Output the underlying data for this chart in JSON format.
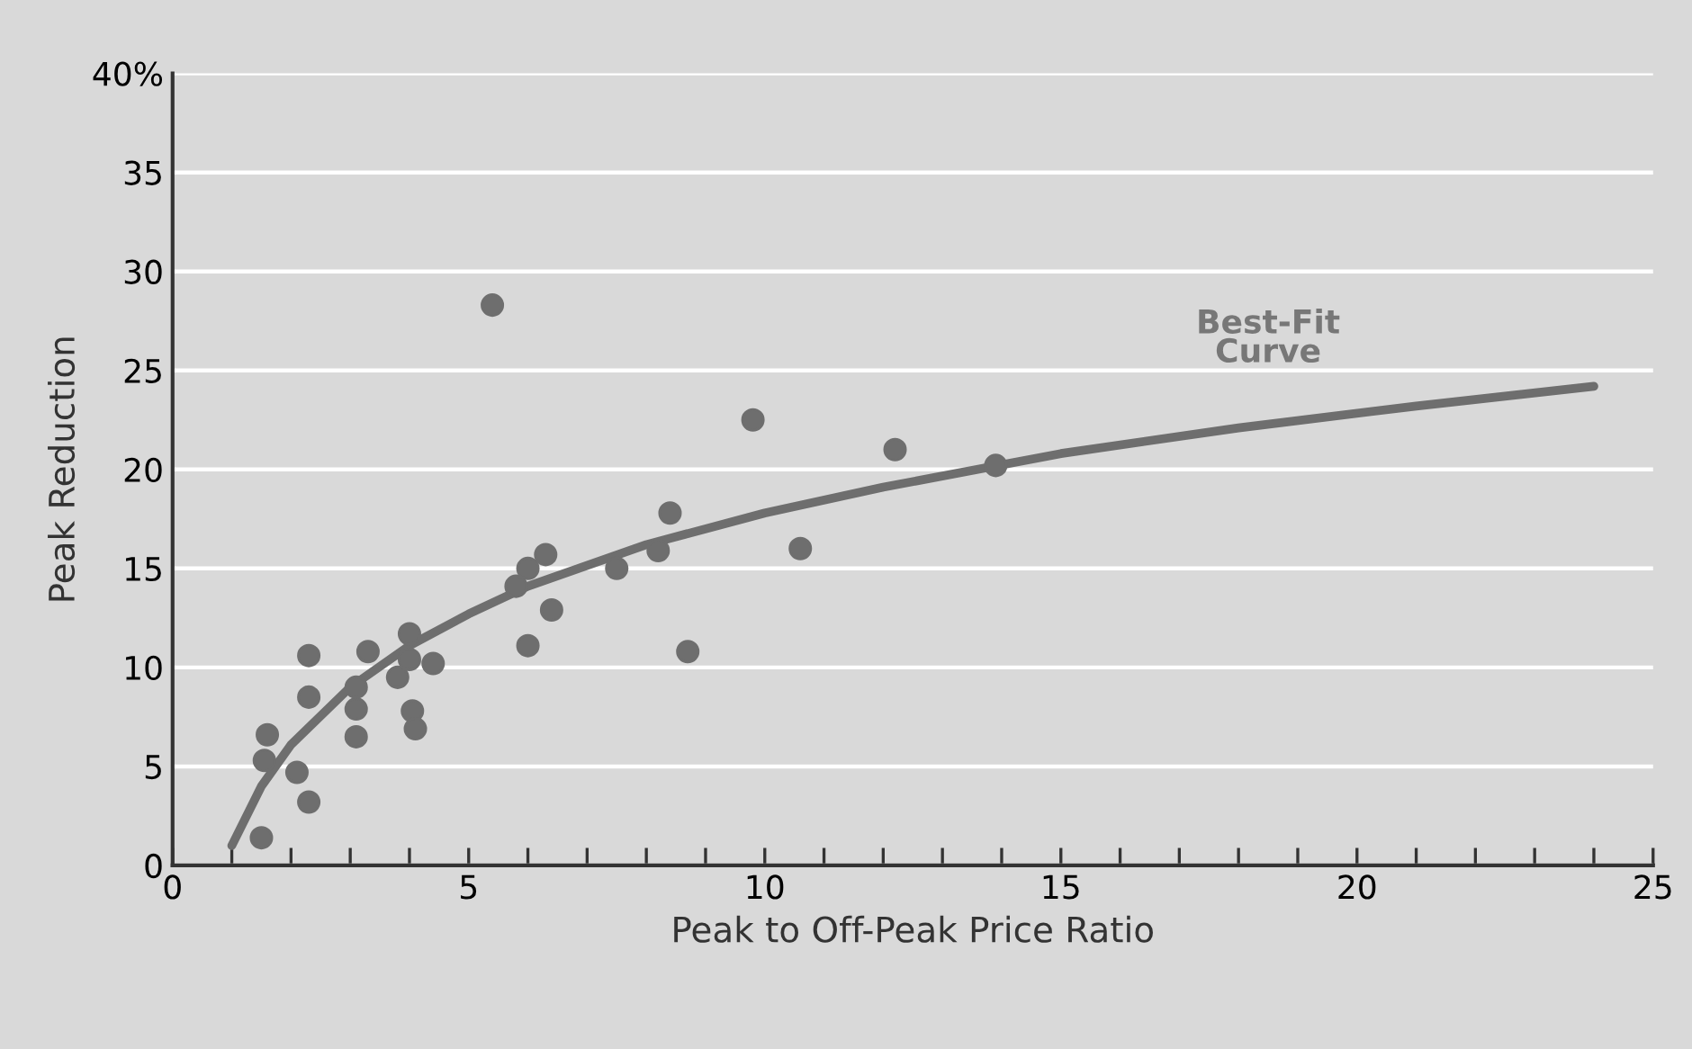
{
  "chart_data": {
    "type": "scatter",
    "xlabel": "Peak to Off-Peak Price Ratio",
    "ylabel": "Peak Reduction",
    "xlim": [
      0,
      25
    ],
    "ylim": [
      0,
      40
    ],
    "xticks": [
      0,
      {
        "value": 1,
        "label": null
      },
      {
        "value": 2,
        "label": null
      },
      {
        "value": 3,
        "label": null
      },
      {
        "value": 4,
        "label": null
      },
      5,
      {
        "value": 6,
        "label": null
      },
      {
        "value": 7,
        "label": null
      },
      {
        "value": 8,
        "label": null
      },
      {
        "value": 9,
        "label": null
      },
      10,
      {
        "value": 11,
        "label": null
      },
      {
        "value": 12,
        "label": null
      },
      {
        "value": 13,
        "label": null
      },
      {
        "value": 14,
        "label": null
      },
      15,
      {
        "value": 16,
        "label": null
      },
      {
        "value": 17,
        "label": null
      },
      {
        "value": 18,
        "label": null
      },
      {
        "value": 19,
        "label": null
      },
      20,
      {
        "value": 21,
        "label": null
      },
      {
        "value": 22,
        "label": null
      },
      {
        "value": 23,
        "label": null
      },
      {
        "value": 24,
        "label": null
      },
      25
    ],
    "yticks": [
      0,
      5,
      10,
      15,
      20,
      25,
      30,
      35,
      {
        "value": 40,
        "label": "40%"
      }
    ],
    "grid": "y",
    "marker": "circle",
    "series": [
      {
        "color": "#6e6e6e",
        "x": [
          1.5,
          1.6,
          1.55,
          2.1,
          2.3,
          2.3,
          2.3,
          3.1,
          3.1,
          3.1,
          3.3,
          3.8,
          4.0,
          4.0,
          4.05,
          4.1,
          4.4,
          5.4,
          5.8,
          6.0,
          6.0,
          6.3,
          6.4,
          7.5,
          8.2,
          8.4,
          8.7,
          9.8,
          10.6,
          12.2,
          13.9
        ],
        "values": [
          1.4,
          6.6,
          5.3,
          4.7,
          3.2,
          8.5,
          10.6,
          6.5,
          7.9,
          9.0,
          10.8,
          9.5,
          11.7,
          10.4,
          7.8,
          6.9,
          10.2,
          28.3,
          14.1,
          15.0,
          11.1,
          15.7,
          12.9,
          15.0,
          15.9,
          17.8,
          10.8,
          22.5,
          16.0,
          21.0,
          20.2
        ]
      },
      {
        "type": "line",
        "color": "#6e6e6e",
        "marker": "none",
        "x": [
          1,
          1.5,
          2,
          3,
          4,
          5,
          6,
          8,
          10,
          12,
          15,
          18,
          21,
          24
        ],
        "values": [
          1.0,
          4.0,
          6.1,
          9.0,
          11.1,
          12.7,
          14.1,
          16.2,
          17.8,
          19.1,
          20.8,
          22.1,
          23.2,
          24.2
        ]
      }
    ],
    "annotations": [
      "Best-Fit\nCurve"
    ]
  }
}
